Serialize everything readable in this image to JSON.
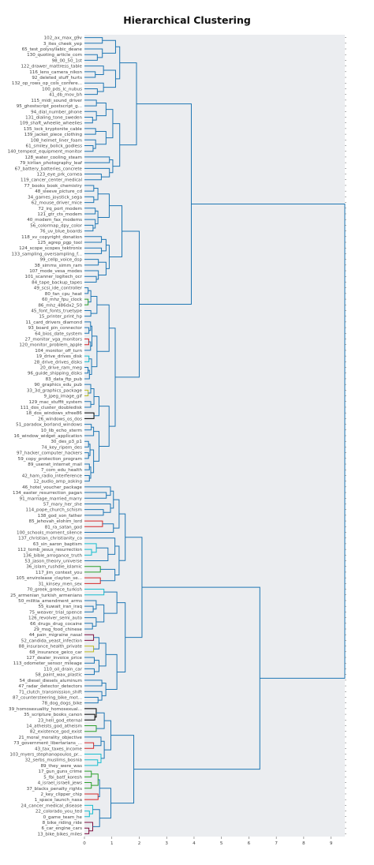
{
  "chart_data": {
    "type": "dendrogram",
    "title": "Hierarchical Clustering",
    "orientation": "left",
    "xlim": [
      0,
      9.5
    ],
    "xticks": [
      0,
      1,
      2,
      3,
      4,
      5,
      6,
      7,
      8,
      9
    ],
    "grid": false,
    "colors": {
      "background": "#ebedf0",
      "above_threshold": "#1f77b4",
      "cluster_palette": [
        "#1f77b4",
        "#17becf",
        "#2ca02c",
        "#d62728",
        "#8c564b",
        "#bcbd22",
        "#7f0f3f",
        "#000000"
      ]
    },
    "leaves": [
      {
        "label": "102_ax_max_g9v",
        "c": 0
      },
      {
        "label": "3_ites_cheek_yep",
        "c": 0
      },
      {
        "label": "65_test_polysyllabic_deane",
        "c": 0
      },
      {
        "label": "130_quoting_article_com",
        "c": 0
      },
      {
        "label": "98_00_50_1st",
        "c": 0
      },
      {
        "label": "122_drawer_mattress_table",
        "c": 0
      },
      {
        "label": "116_lens_camera_nikon",
        "c": 0
      },
      {
        "label": "92_deleted_stuff_hurts",
        "c": 0
      },
      {
        "label": "132_op_rows_op_cols_confere...",
        "c": 0
      },
      {
        "label": "100_pds_lc_nubus",
        "c": 0
      },
      {
        "label": "41_db_mov_bh",
        "c": 0
      },
      {
        "label": "115_midi_sound_driver",
        "c": 0
      },
      {
        "label": "95_ghostscript_postscript_g...",
        "c": 0
      },
      {
        "label": "94_dial_number_phone",
        "c": 0
      },
      {
        "label": "131_dialing_tone_sweden",
        "c": 0
      },
      {
        "label": "109_shaft_wheelie_wheelies",
        "c": 0
      },
      {
        "label": "135_lock_kryptonite_cable",
        "c": 0
      },
      {
        "label": "139_jacket_piece_clothing",
        "c": 0
      },
      {
        "label": "108_helmet_liner_foam",
        "c": 0
      },
      {
        "label": "61_smiley_bolick_godless",
        "c": 0
      },
      {
        "label": "140_tempest_equipment_monitor",
        "c": 0
      },
      {
        "label": "128_water_cooling_steam",
        "c": 0
      },
      {
        "label": "79_kirlian_photography_leaf",
        "c": 0
      },
      {
        "label": "67_battery_batteries_concrete",
        "c": 0
      },
      {
        "label": "123_eye_prk_cornea",
        "c": 0
      },
      {
        "label": "119_cancer_center_medical",
        "c": 0
      },
      {
        "label": "77_books_book_chemistry",
        "c": 0
      },
      {
        "label": "48_sleeve_picture_cd",
        "c": 0
      },
      {
        "label": "34_games_joystick_sega",
        "c": 0
      },
      {
        "label": "62_mouse_driver_mice",
        "c": 0
      },
      {
        "label": "72_irq_port_modem",
        "c": 0
      },
      {
        "label": "121_gtr_cts_modem",
        "c": 0
      },
      {
        "label": "40_modem_fax_modems",
        "c": 0
      },
      {
        "label": "56_colormap_dpy_color",
        "c": 0
      },
      {
        "label": "76_uv_blue_boards",
        "c": 0
      },
      {
        "label": "118_xv_copyright_donation",
        "c": 0
      },
      {
        "label": "125_agrep_pgp_tool",
        "c": 0
      },
      {
        "label": "124_scope_scopes_tektronix",
        "c": 0
      },
      {
        "label": "133_sampling_oversampling_f...",
        "c": 0
      },
      {
        "label": "99_cellp_voice_dsp",
        "c": 0
      },
      {
        "label": "38_simms_simm_ram",
        "c": 0
      },
      {
        "label": "107_mode_vesa_modes",
        "c": 0
      },
      {
        "label": "101_scanner_logitech_ocr",
        "c": 0
      },
      {
        "label": "84_tape_backup_tapes",
        "c": 0
      },
      {
        "label": "49_scsi_ide_controller",
        "c": 0
      },
      {
        "label": "80_fan_cpu_heat",
        "c": 0
      },
      {
        "label": "60_mhz_fpu_clock",
        "c": 2
      },
      {
        "label": "86_mhz_486dx2_50",
        "c": 2
      },
      {
        "label": "45_font_fonts_truetype",
        "c": 0
      },
      {
        "label": "15_printer_print_hp",
        "c": 0
      },
      {
        "label": "11_card_drivers_diamond",
        "c": 0
      },
      {
        "label": "93_board_pin_connector",
        "c": 0
      },
      {
        "label": "64_bios_date_system",
        "c": 0
      },
      {
        "label": "27_monitor_vga_monitors",
        "c": 3
      },
      {
        "label": "120_monitor_problem_apple",
        "c": 3
      },
      {
        "label": "104_monitor_off_turn",
        "c": 0
      },
      {
        "label": "19_drive_drives_disk",
        "c": 1
      },
      {
        "label": "28_drive_drives_disks",
        "c": 1
      },
      {
        "label": "20_drive_ram_meg",
        "c": 0
      },
      {
        "label": "96_guide_shipping_disks",
        "c": 0
      },
      {
        "label": "83_data_ftp_pub",
        "c": 6
      },
      {
        "label": "90_graphics_edu_pub",
        "c": 6
      },
      {
        "label": "33_3d_graphics_package",
        "c": 5
      },
      {
        "label": "9_jpeg_image_gif",
        "c": 5
      },
      {
        "label": "129_mac_stuffit_system",
        "c": 0
      },
      {
        "label": "111_dos_cluster_doubledisk",
        "c": 0
      },
      {
        "label": "18_dos_windows_xfree86",
        "c": 7
      },
      {
        "label": "26_windows_os_dos",
        "c": 7
      },
      {
        "label": "51_paradox_borland_windows",
        "c": 7
      },
      {
        "label": "10_lib_echo_xterm",
        "c": 0
      },
      {
        "label": "16_window_widget_application",
        "c": 2
      },
      {
        "label": "30_des_p3_p1",
        "c": 0
      },
      {
        "label": "74_key_ripem_des",
        "c": 0
      },
      {
        "label": "97_hacker_computer_hackers",
        "c": 0
      },
      {
        "label": "59_copy_protection_program",
        "c": 0
      },
      {
        "label": "89_usenet_internet_mail",
        "c": 0
      },
      {
        "label": "7_com_edu_health",
        "c": 0
      },
      {
        "label": "42_ham_radio_interference",
        "c": 0
      },
      {
        "label": "12_audio_amp_asking",
        "c": 0
      },
      {
        "label": "46_hotel_voucher_package",
        "c": 0
      },
      {
        "label": "134_easter_resurrection_pagan",
        "c": 0
      },
      {
        "label": "91_marriage_married_marry",
        "c": 0
      },
      {
        "label": "57_mary_her_she",
        "c": 0
      },
      {
        "label": "114_pope_church_schism",
        "c": 0
      },
      {
        "label": "138_god_son_father",
        "c": 0
      },
      {
        "label": "85_jehovah_elohim_lord",
        "c": 3
      },
      {
        "label": "81_ra_satan_god",
        "c": 3
      },
      {
        "label": "100_schools_moment_silence",
        "c": 0
      },
      {
        "label": "137_christian_christianity_co",
        "c": 0
      },
      {
        "label": "63_sin_aaron_baptism",
        "c": 1
      },
      {
        "label": "112_tomb_jesus_resurrection",
        "c": 1
      },
      {
        "label": "136_bible_arrogance_truth",
        "c": 1
      },
      {
        "label": "53_jason_theory_universe",
        "c": 0
      },
      {
        "label": "36_islam_rushdie_islamic",
        "c": 2
      },
      {
        "label": "117_jim_context_you",
        "c": 2
      },
      {
        "label": "105_envirolease_clayton_se...",
        "c": 3
      },
      {
        "label": "31_kinsey_men_sex",
        "c": 3
      },
      {
        "label": "70_greek_greece_turkish",
        "c": 1
      },
      {
        "label": "25_armenian_turkish_armenians",
        "c": 1
      },
      {
        "label": "50_militia_amendment_arms",
        "c": 0
      },
      {
        "label": "55_kuwait_iran_iraq",
        "c": 0
      },
      {
        "label": "75_weaver_trial_spence",
        "c": 0
      },
      {
        "label": "126_revolver_semi_auto",
        "c": 0
      },
      {
        "label": "66_drugs_drug_cocaine",
        "c": 0
      },
      {
        "label": "29_msg_food_chinese",
        "c": 0
      },
      {
        "label": "44_pain_migraine_nasal",
        "c": 6
      },
      {
        "label": "52_candida_yeast_infection",
        "c": 6
      },
      {
        "label": "88_insurance_health_private",
        "c": 5
      },
      {
        "label": "68_insurance_geico_car",
        "c": 5
      },
      {
        "label": "127_dealer_invoice_price",
        "c": 0
      },
      {
        "label": "113_odometer_sensor_mileage",
        "c": 0
      },
      {
        "label": "110_oil_drain_car",
        "c": 0
      },
      {
        "label": "58_paint_wax_plastic",
        "c": 0
      },
      {
        "label": "54_diesel_diesels_aluminum",
        "c": 0
      },
      {
        "label": "47_radar_detector_detectors",
        "c": 0
      },
      {
        "label": "71_clutch_transmission_shift",
        "c": 0
      },
      {
        "label": "87_countersteering_bike_mot...",
        "c": 0
      },
      {
        "label": "78_dog_dogs_bike",
        "c": 0
      },
      {
        "label": "39_homosexuality_homosexual...",
        "c": 7
      },
      {
        "label": "35_scripture_books_canon",
        "c": 7
      },
      {
        "label": "23_hell_god_eternal",
        "c": 7
      },
      {
        "label": "14_atheists_god_atheism",
        "c": 2
      },
      {
        "label": "82_existence_god_exist",
        "c": 2
      },
      {
        "label": "21_moral_morality_objective",
        "c": 0
      },
      {
        "label": "73_government_libertarians_...",
        "c": 3
      },
      {
        "label": "43_tax_taxes_income",
        "c": 3
      },
      {
        "label": "103_myers_stephanopoulos_pr...",
        "c": 1
      },
      {
        "label": "32_serbs_muslims_bosnia",
        "c": 1
      },
      {
        "label": "89_they_were_was",
        "c": 1
      },
      {
        "label": "17_gun_guns_crime",
        "c": 2
      },
      {
        "label": "5_fbi_batf_koresh",
        "c": 2
      },
      {
        "label": "4_israel_israeli_jews",
        "c": 2
      },
      {
        "label": "37_blacks_penalty_rights",
        "c": 2
      },
      {
        "label": "2_key_clipper_chip",
        "c": 3
      },
      {
        "label": "1_space_launch_nasa",
        "c": 3
      },
      {
        "label": "24_cancer_medical_disease",
        "c": 1
      },
      {
        "label": "22_colorado_you_ted",
        "c": 1
      },
      {
        "label": "0_game_team_he",
        "c": 1
      },
      {
        "label": "8_bike_riding_ride",
        "c": 6
      },
      {
        "label": "6_car_engine_cars",
        "c": 6
      },
      {
        "label": "13_bike_bikes_miles",
        "c": 6
      }
    ]
  }
}
